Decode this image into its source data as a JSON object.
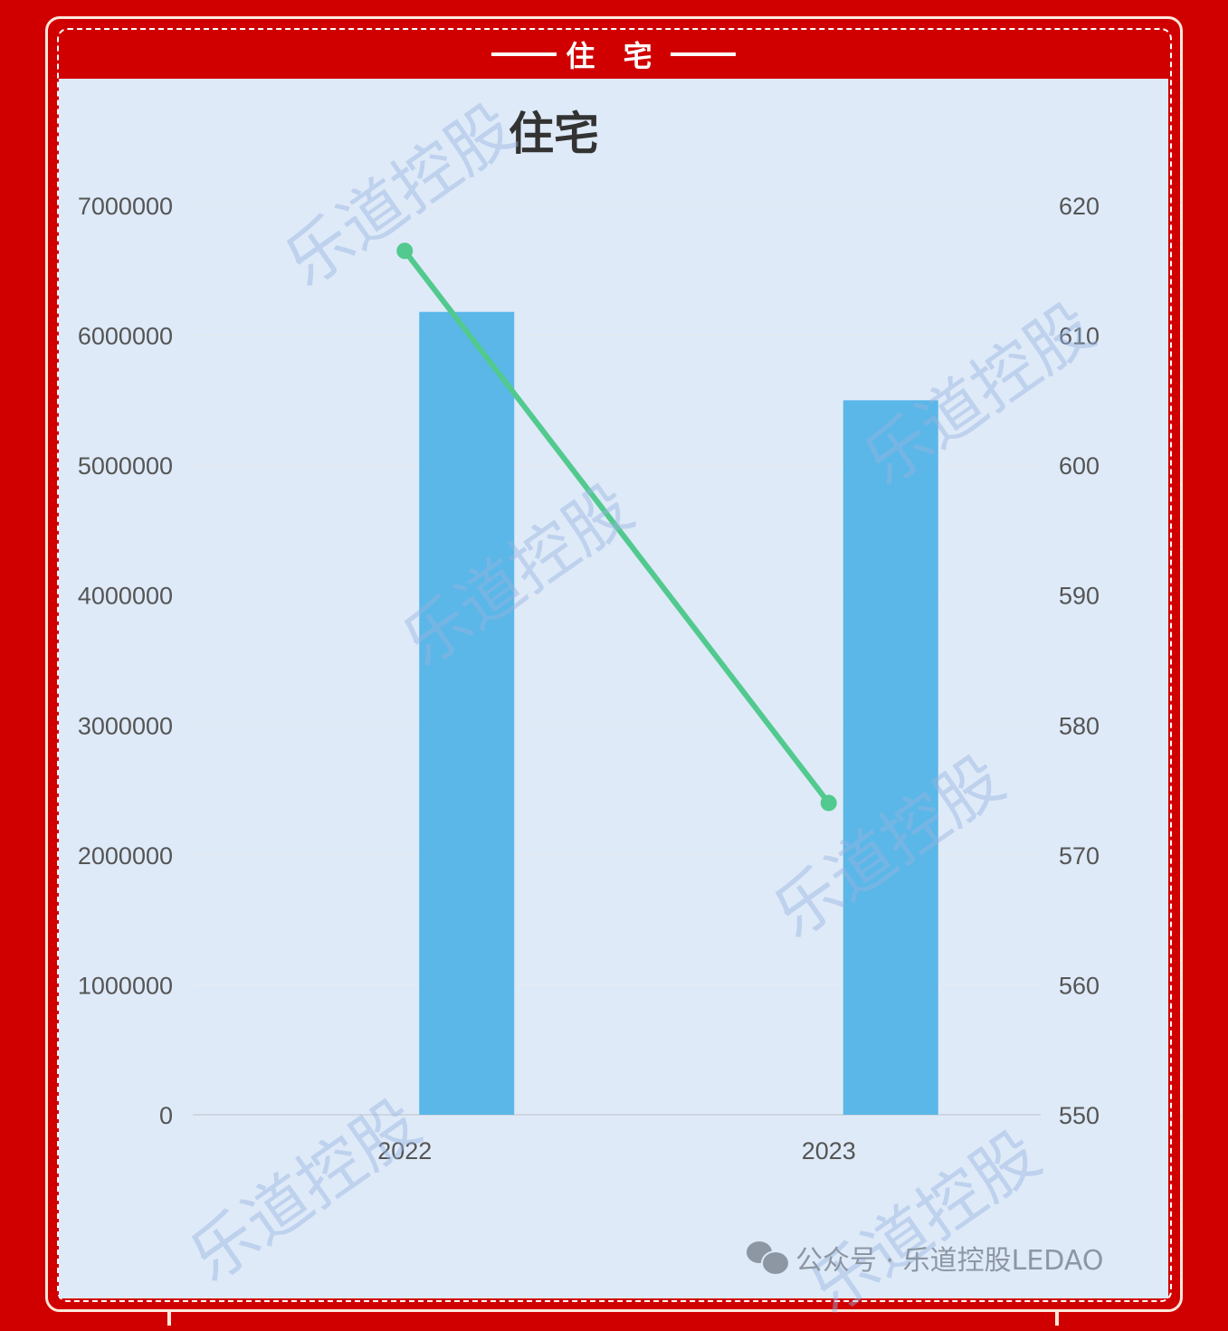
{
  "header": {
    "title": "住 宅"
  },
  "watermark": "乐道控股",
  "footer": {
    "text": "公众号 · 乐道控股LEDAO",
    "icon": "wechat-icon"
  },
  "chart_data": {
    "type": "bar+line",
    "title": "住宅",
    "categories": [
      "2022",
      "2023"
    ],
    "series": [
      {
        "type": "bar",
        "axis": "left",
        "values": [
          6180000,
          5500000
        ],
        "color": "#5ab7e8"
      },
      {
        "type": "line",
        "axis": "right",
        "values": [
          616.5,
          574
        ],
        "color": "#52c98e"
      }
    ],
    "y_left": {
      "range": [
        0,
        7000000
      ],
      "ticks": [
        "0",
        "1000000",
        "2000000",
        "3000000",
        "4000000",
        "5000000",
        "6000000",
        "7000000"
      ]
    },
    "y_right": {
      "range": [
        550,
        620
      ],
      "ticks": [
        "550",
        "560",
        "570",
        "580",
        "590",
        "600",
        "610",
        "620"
      ]
    },
    "grid": true
  }
}
